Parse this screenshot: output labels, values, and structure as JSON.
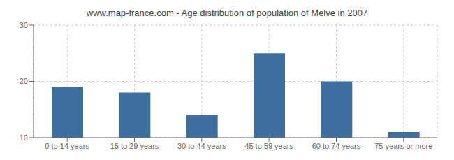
{
  "chart_data": {
    "type": "bar",
    "title": "www.map-france.com - Age distribution of population of Melve in 2007",
    "categories": [
      "0 to 14 years",
      "15 to 29 years",
      "30 to 44 years",
      "45 to 59 years",
      "60 to 74 years",
      "75 years or more"
    ],
    "values": [
      19,
      18,
      14,
      25,
      20,
      11
    ],
    "color": "#3d6f9e",
    "ylim": [
      10,
      30
    ],
    "yticks": [
      10,
      20,
      30
    ],
    "grid": true
  }
}
